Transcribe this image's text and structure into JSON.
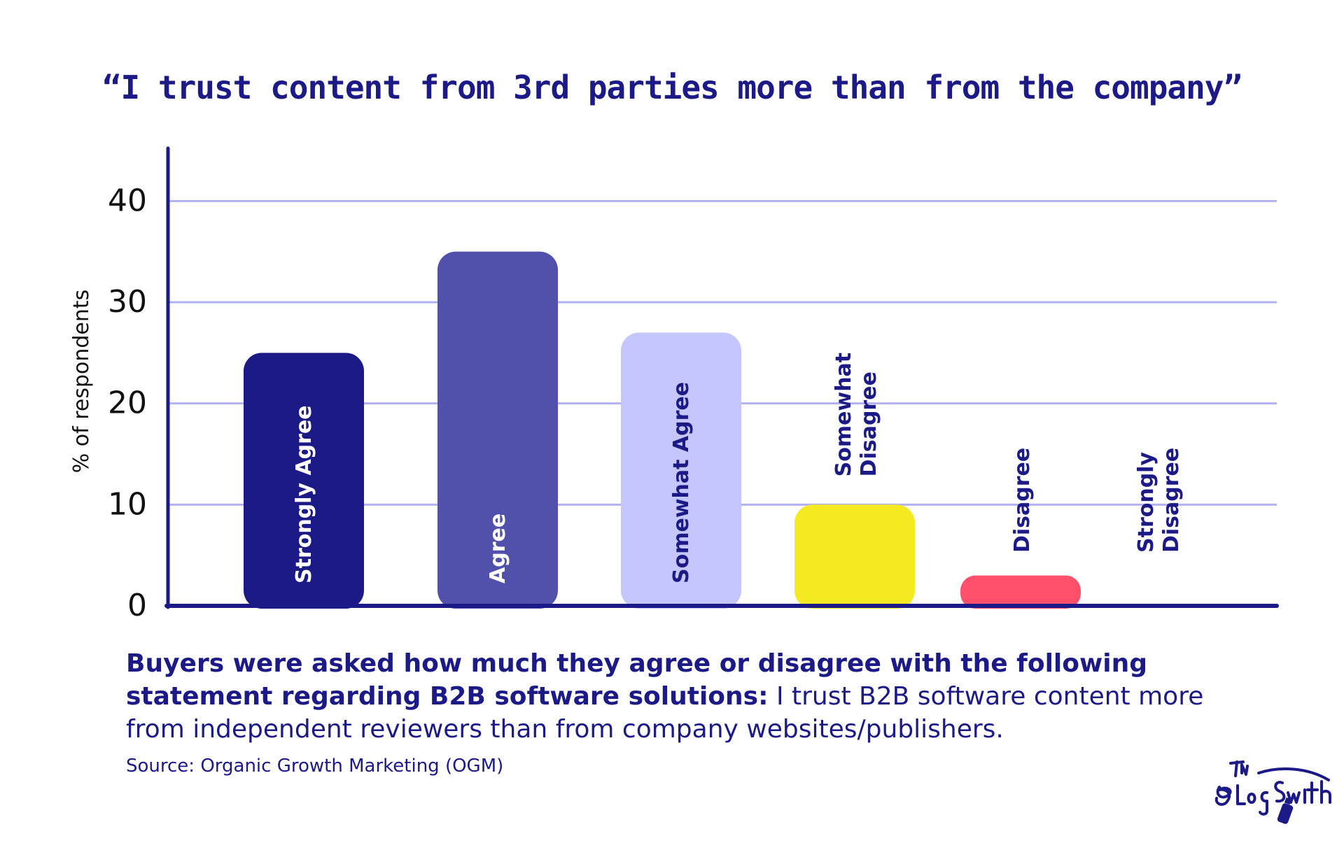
{
  "chart_data": {
    "type": "bar",
    "title": "“I trust content from 3rd parties more than from the company”",
    "ylabel": "% of respondents",
    "xlabel": "",
    "ylim": [
      0,
      45
    ],
    "yticks": [
      0,
      10,
      20,
      30,
      40
    ],
    "grid": true,
    "categories": [
      "Strongly Agree",
      "Agree",
      "Somewhat Agree",
      "Somewhat Disagree",
      "Disagree",
      "Strongly Disagree"
    ],
    "category_label_lines": [
      [
        "Strongly Agree"
      ],
      [
        "Agree"
      ],
      [
        "Somewhat Agree"
      ],
      [
        "Somewhat",
        "Disagree"
      ],
      [
        "Disagree"
      ],
      [
        "Strongly",
        "Disagree"
      ]
    ],
    "values": [
      25,
      35,
      27,
      10,
      3,
      0
    ],
    "colors": [
      "#1c1a87",
      "#5151ac",
      "#c5c6fb",
      "#f5ea22",
      "#ff4f6b",
      "#ffffff"
    ],
    "label_colors": [
      "#ffffff",
      "#ffffff",
      "#1c1a87",
      "#1c1a87",
      "#1c1a87",
      "#1c1a87"
    ],
    "axis_color": "#1c1a87",
    "grid_color": "#b3b1f2"
  },
  "description": {
    "bold": "Buyers were asked how much they agree or disagree with the following statement regarding B2B software solutions:",
    "regular": " I trust B2B software content more from independent reviewers than from company websites/publishers."
  },
  "source": "Source: Organic Growth Marketing (OGM)",
  "logo": {
    "text": "The BlogSmith",
    "icon": "spray-can-icon"
  }
}
